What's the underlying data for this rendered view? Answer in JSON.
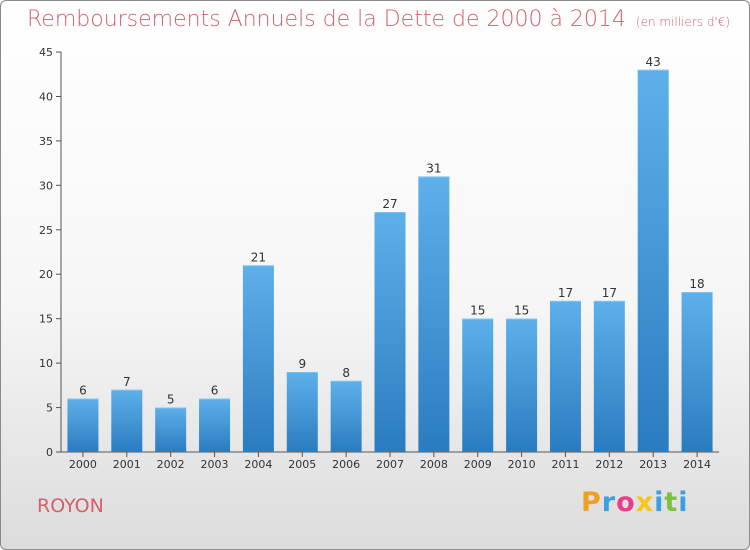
{
  "chart_data": {
    "type": "bar",
    "title": "Remboursements Annuels de la Dette de 2000 à 2014",
    "unit_note": "(en milliers d'€)",
    "categories": [
      "2000",
      "2001",
      "2002",
      "2003",
      "2004",
      "2005",
      "2006",
      "2007",
      "2008",
      "2009",
      "2010",
      "2011",
      "2012",
      "2013",
      "2014"
    ],
    "values": [
      6,
      7,
      5,
      6,
      21,
      9,
      8,
      27,
      31,
      15,
      15,
      17,
      17,
      43,
      18
    ],
    "ylim": [
      0,
      45
    ],
    "yticks": [
      0,
      5,
      10,
      15,
      20,
      25,
      30,
      35,
      40,
      45
    ],
    "grid": false,
    "bar_color": "#4ea3e0"
  },
  "commune": "ROYON",
  "brand": {
    "letters": [
      "P",
      "r",
      "o",
      "x",
      "i",
      "t",
      "i"
    ],
    "colors": [
      "#f0a020",
      "#3aa0e0",
      "#e83e8c",
      "#f5c518",
      "#3aa0e0",
      "#7cc242",
      "#3aa0e0"
    ]
  },
  "colors": {
    "title": "#d4606a"
  }
}
